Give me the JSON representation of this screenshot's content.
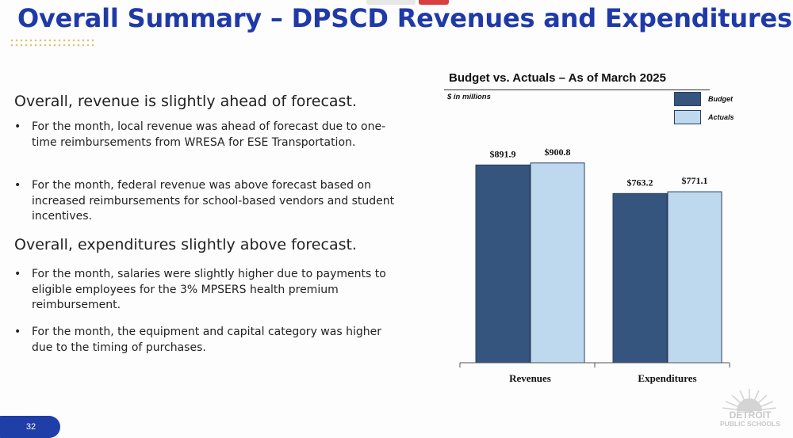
{
  "title": "Overall Summary – DPSCD Revenues and Expenditures",
  "sections": [
    {
      "heading": "Overall, revenue is slightly ahead of forecast.",
      "bullets": [
        "For the month, local revenue was ahead of forecast due to one-time reimbursements from WRESA for ESE Transportation.",
        "For the month, federal revenue was above forecast based on increased reimbursements for school-based vendors and student incentives."
      ]
    },
    {
      "heading": "Overall, expenditures slightly above forecast.",
      "bullets": [
        "For the month, salaries were slightly higher due to payments to eligible employees for the 3% MPSERS health premium reimbursement.",
        "For the month, the equipment and capital category was higher due to the timing of purchases."
      ]
    }
  ],
  "bullet_glyph": "•",
  "chart_data": {
    "type": "bar",
    "title": "Budget vs. Actuals – As of March 2025",
    "unit_note": "$ in millions",
    "categories": [
      "Revenues",
      "Expenditures"
    ],
    "series": [
      {
        "name": "Budget",
        "values": [
          891.9,
          763.2
        ],
        "labels": [
          "$891.9",
          "$763.2"
        ],
        "color": "#35557f"
      },
      {
        "name": "Actuals",
        "values": [
          900.8,
          771.1
        ],
        "labels": [
          "$900.8",
          "$771.1"
        ],
        "color": "#bed9ee"
      }
    ],
    "ylim": [
      0,
      1000
    ],
    "grid": false,
    "legend_position": "top-right"
  },
  "footer": {
    "page_number": "32",
    "logo_text_1": "DETROIT",
    "logo_text_2": "PUBLIC SCHOOLS"
  },
  "colors": {
    "title": "#1f3aa8",
    "page_badge": "#1f3ea8",
    "bar_outline": "#2a3f5f"
  }
}
